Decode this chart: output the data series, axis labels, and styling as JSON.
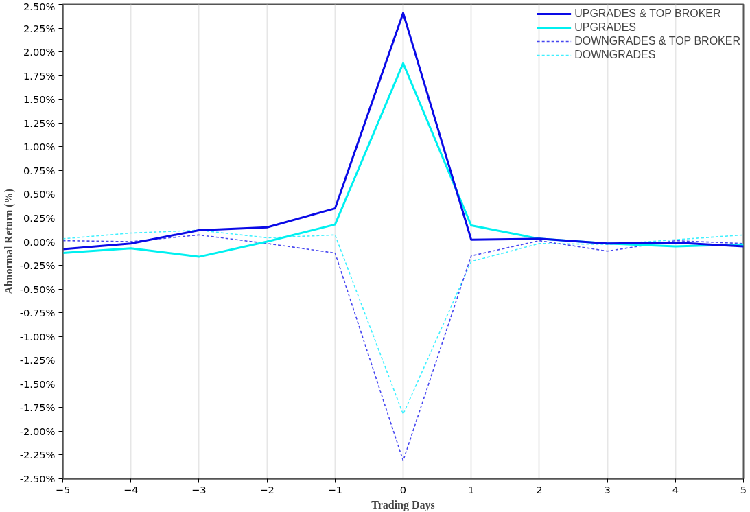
{
  "chart_data": {
    "type": "line",
    "xlabel": "Trading Days",
    "ylabel": "Abnormal Return (%)",
    "x": [
      -5,
      -4,
      -3,
      -2,
      -1,
      0,
      1,
      2,
      3,
      4,
      5
    ],
    "xlim": [
      -5,
      5
    ],
    "xticks": [
      -5,
      -4,
      -3,
      -2,
      -1,
      0,
      1,
      2,
      3,
      4,
      5
    ],
    "ylim": [
      -2.5,
      2.5
    ],
    "yticks": [
      {
        "value": -2.5,
        "label": "-2.50%"
      },
      {
        "value": -2.25,
        "label": "-2.25%"
      },
      {
        "value": -2.0,
        "label": "-2.00%"
      },
      {
        "value": -1.75,
        "label": "-1.75%"
      },
      {
        "value": -1.5,
        "label": "-1.50%"
      },
      {
        "value": -1.25,
        "label": "-1.25%"
      },
      {
        "value": -1.0,
        "label": "-1.00%"
      },
      {
        "value": -0.75,
        "label": "-0.75%"
      },
      {
        "value": -0.5,
        "label": "-0.50%"
      },
      {
        "value": -0.25,
        "label": "-0.25%"
      },
      {
        "value": 0,
        "label": "0.00%"
      },
      {
        "value": 0.25,
        "label": "0.25%"
      },
      {
        "value": 0.5,
        "label": "0.50%"
      },
      {
        "value": 0.75,
        "label": "0.75%"
      },
      {
        "value": 1.0,
        "label": "1.00%"
      },
      {
        "value": 1.25,
        "label": "1.25%"
      },
      {
        "value": 1.5,
        "label": "1.50%"
      },
      {
        "value": 1.75,
        "label": "1.75%"
      },
      {
        "value": 2.0,
        "label": "2.00%"
      },
      {
        "value": 2.25,
        "label": "2.25%"
      },
      {
        "value": 2.5,
        "label": "2.50%"
      }
    ],
    "grid": "x",
    "legend": "top right",
    "series": [
      {
        "name": "UPGRADES & TOP BROKER",
        "color": "#0a0ae6",
        "line_style": "solid",
        "values": [
          -0.08,
          -0.02,
          0.12,
          0.15,
          0.35,
          2.41,
          0.02,
          0.03,
          -0.02,
          -0.01,
          -0.05
        ]
      },
      {
        "name": "UPGRADES",
        "color": "#00f0f0",
        "line_style": "solid",
        "values": [
          -0.12,
          -0.07,
          -0.16,
          0.0,
          0.18,
          1.88,
          0.17,
          0.03,
          -0.02,
          -0.05,
          -0.03
        ]
      },
      {
        "name": "DOWNGRADES & TOP BROKER",
        "color": "#4646f0",
        "line_style": "dashed",
        "values": [
          0.01,
          0.0,
          0.07,
          -0.02,
          -0.12,
          -2.31,
          -0.15,
          0.01,
          -0.1,
          0.01,
          -0.02
        ]
      },
      {
        "name": "DOWNGRADES",
        "color": "#40f0ff",
        "line_style": "dashed",
        "values": [
          0.03,
          0.09,
          0.12,
          0.04,
          0.07,
          -1.82,
          -0.21,
          -0.02,
          -0.03,
          0.02,
          0.07
        ]
      }
    ]
  }
}
